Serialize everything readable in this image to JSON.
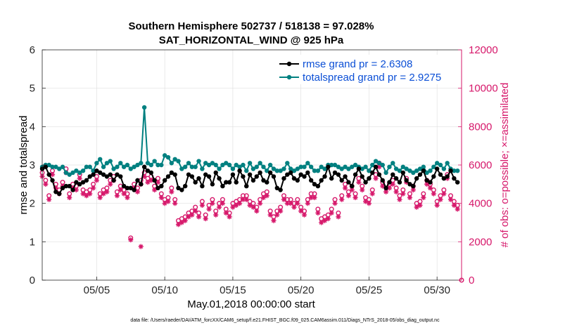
{
  "chart_data": {
    "type": "line",
    "title_line1": "Southern Hemisphere 502737 / 518138 = 97.028%",
    "title_line2": "SAT_HORIZONTAL_WIND @ 925 hPa",
    "xlabel": "May.01,2018 00:00:00 start",
    "ylabel_left": "rmse and totalspread",
    "ylabel_right": "# of obs: o=possible; ×=assimilated",
    "xlim": [
      1,
      31.8
    ],
    "ylim_left": [
      0,
      6
    ],
    "ylim_right": [
      0,
      12000
    ],
    "x_tick_values": [
      5,
      10,
      15,
      20,
      25,
      30
    ],
    "x_tick_labels": [
      "05/05",
      "05/10",
      "05/15",
      "05/20",
      "05/25",
      "05/30"
    ],
    "y_left_ticks": [
      "0",
      "1",
      "2",
      "3",
      "4",
      "5",
      "6"
    ],
    "y_right_ticks": [
      "0",
      "2000",
      "4000",
      "6000",
      "8000",
      "10000",
      "12000"
    ],
    "grid": true,
    "legend_position": "top-right",
    "legend": [
      "rmse grand pr = 2.6308",
      "totalspread grand pr = 2.9275"
    ],
    "colors": {
      "rmse": "#000000",
      "totalspread": "#008080",
      "obs": "#d6176a",
      "legend_text": "#0b4fd6"
    },
    "series": [
      {
        "name": "rmse",
        "axis": "left",
        "x": [
          1,
          1.25,
          1.5,
          1.75,
          2,
          2.25,
          2.5,
          2.75,
          3,
          3.25,
          3.5,
          3.75,
          4,
          4.25,
          4.5,
          4.75,
          5,
          5.25,
          5.5,
          5.75,
          6,
          6.25,
          6.5,
          6.75,
          7,
          7.25,
          7.5,
          7.75,
          8,
          8.25,
          8.5,
          8.75,
          9,
          9.25,
          9.5,
          9.75,
          10,
          10.25,
          10.5,
          10.75,
          11,
          11.25,
          11.5,
          11.75,
          12,
          12.25,
          12.5,
          12.75,
          13,
          13.25,
          13.5,
          13.75,
          14,
          14.25,
          14.5,
          14.75,
          15,
          15.25,
          15.5,
          15.75,
          16,
          16.25,
          16.5,
          16.75,
          17,
          17.25,
          17.5,
          17.75,
          18,
          18.25,
          18.5,
          18.75,
          19,
          19.25,
          19.5,
          19.75,
          20,
          20.25,
          20.5,
          20.75,
          21,
          21.25,
          21.5,
          21.75,
          22,
          22.25,
          22.5,
          22.75,
          23,
          23.25,
          23.5,
          23.75,
          24,
          24.25,
          24.5,
          24.75,
          25,
          25.25,
          25.5,
          25.75,
          26,
          26.25,
          26.5,
          26.75,
          27,
          27.25,
          27.5,
          27.75,
          28,
          28.25,
          28.5,
          28.75,
          29,
          29.25,
          29.5,
          29.75,
          30,
          30.25,
          30.5,
          30.75,
          31,
          31.25,
          31.5
        ],
        "values": [
          2.9,
          2.95,
          2.75,
          2.6,
          2.3,
          2.25,
          2.4,
          2.45,
          2.45,
          2.35,
          2.55,
          2.5,
          2.55,
          2.6,
          2.7,
          2.75,
          2.85,
          2.8,
          2.75,
          2.7,
          2.75,
          2.6,
          2.75,
          2.7,
          2.45,
          2.4,
          2.4,
          2.35,
          2.6,
          2.5,
          2.95,
          2.85,
          2.8,
          2.6,
          2.4,
          2.45,
          2.6,
          2.7,
          2.8,
          2.75,
          2.4,
          2.35,
          2.45,
          2.75,
          2.7,
          2.55,
          2.65,
          2.45,
          2.75,
          2.7,
          2.5,
          2.8,
          2.65,
          2.45,
          2.55,
          2.55,
          2.75,
          2.55,
          2.85,
          2.7,
          2.45,
          2.75,
          2.6,
          2.7,
          2.8,
          2.6,
          2.55,
          2.8,
          2.7,
          2.4,
          2.35,
          2.65,
          2.75,
          2.8,
          2.65,
          2.6,
          2.75,
          2.7,
          2.8,
          2.6,
          2.5,
          2.45,
          2.6,
          2.7,
          2.95,
          2.65,
          2.8,
          2.75,
          2.6,
          2.7,
          2.55,
          2.45,
          2.75,
          2.9,
          2.7,
          2.55,
          2.65,
          2.8,
          2.95,
          2.75,
          2.6,
          2.4,
          2.55,
          2.75,
          2.65,
          2.55,
          2.8,
          2.6,
          2.5,
          2.45,
          2.65,
          2.75,
          2.85,
          2.6,
          2.55,
          2.7,
          2.9,
          2.75,
          2.65,
          2.7,
          2.85,
          2.65,
          2.55
        ]
      },
      {
        "name": "totalspread",
        "axis": "left",
        "x": [
          1,
          1.25,
          1.5,
          1.75,
          2,
          2.25,
          2.5,
          2.75,
          3,
          3.25,
          3.5,
          3.75,
          4,
          4.25,
          4.5,
          4.75,
          5,
          5.25,
          5.5,
          5.75,
          6,
          6.25,
          6.5,
          6.75,
          7,
          7.25,
          7.5,
          7.75,
          8,
          8.25,
          8.5,
          8.75,
          9,
          9.25,
          9.5,
          9.75,
          10,
          10.25,
          10.5,
          10.75,
          11,
          11.25,
          11.5,
          11.75,
          12,
          12.25,
          12.5,
          12.75,
          13,
          13.25,
          13.5,
          13.75,
          14,
          14.25,
          14.5,
          14.75,
          15,
          15.25,
          15.5,
          15.75,
          16,
          16.25,
          16.5,
          16.75,
          17,
          17.25,
          17.5,
          17.75,
          18,
          18.25,
          18.5,
          18.75,
          19,
          19.25,
          19.5,
          19.75,
          20,
          20.25,
          20.5,
          20.75,
          21,
          21.25,
          21.5,
          21.75,
          22,
          22.25,
          22.5,
          22.75,
          23,
          23.25,
          23.5,
          23.75,
          24,
          24.25,
          24.5,
          24.75,
          25,
          25.25,
          25.5,
          25.75,
          26,
          26.25,
          26.5,
          26.75,
          27,
          27.25,
          27.5,
          27.75,
          28,
          28.25,
          28.5,
          28.75,
          29,
          29.25,
          29.5,
          29.75,
          30,
          30.25,
          30.5,
          30.75,
          31,
          31.25,
          31.5
        ],
        "values": [
          2.95,
          3.0,
          3.0,
          2.95,
          2.95,
          2.9,
          2.95,
          2.8,
          2.75,
          2.8,
          2.85,
          2.8,
          2.85,
          2.95,
          2.95,
          2.85,
          3.05,
          3.15,
          2.95,
          3.05,
          3.1,
          2.9,
          2.95,
          3.05,
          2.95,
          3.0,
          2.9,
          2.95,
          3.0,
          3.05,
          4.5,
          3.05,
          3.0,
          3.1,
          3.0,
          3.0,
          3.25,
          3.2,
          3.05,
          3.15,
          3.1,
          2.9,
          2.95,
          3.05,
          2.95,
          2.95,
          3.1,
          2.9,
          3.05,
          3.0,
          3.05,
          3.0,
          2.9,
          3.0,
          3.05,
          3.0,
          2.9,
          3.0,
          2.95,
          3.0,
          2.85,
          3.05,
          2.9,
          2.95,
          3.05,
          2.95,
          2.85,
          3.0,
          2.9,
          2.85,
          2.85,
          2.9,
          3.05,
          2.9,
          2.85,
          2.9,
          2.95,
          2.95,
          3.05,
          2.95,
          2.85,
          2.85,
          2.95,
          2.9,
          3.0,
          3.0,
          3.0,
          2.95,
          2.9,
          2.95,
          2.9,
          2.95,
          3.0,
          2.95,
          2.9,
          2.95,
          2.85,
          3.0,
          3.1,
          3.05,
          3.0,
          2.8,
          2.95,
          3.05,
          2.9,
          2.85,
          2.95,
          2.9,
          2.85,
          2.8,
          2.85,
          2.9,
          2.95,
          2.8,
          2.85,
          2.95,
          3.05,
          3.0,
          2.9,
          3.05,
          2.9,
          2.85,
          2.85
        ]
      },
      {
        "name": "obs_possible",
        "axis": "right",
        "marker": "circle",
        "x": [
          1,
          1.25,
          1.5,
          1.75,
          2,
          2.25,
          2.5,
          2.75,
          3,
          3.25,
          3.5,
          3.75,
          4,
          4.25,
          4.5,
          4.75,
          5,
          5.25,
          5.5,
          5.75,
          6,
          6.25,
          6.5,
          6.75,
          7,
          7.25,
          7.5,
          7.75,
          8,
          8.25,
          8.5,
          8.75,
          9,
          9.25,
          9.5,
          9.75,
          10,
          10.25,
          10.5,
          10.75,
          11,
          11.25,
          11.5,
          11.75,
          12,
          12.25,
          12.5,
          12.75,
          13,
          13.25,
          13.5,
          13.75,
          14,
          14.25,
          14.5,
          14.75,
          15,
          15.25,
          15.5,
          15.75,
          16,
          16.25,
          16.5,
          16.75,
          17,
          17.25,
          17.5,
          17.75,
          18,
          18.25,
          18.5,
          18.75,
          19,
          19.25,
          19.5,
          19.75,
          20,
          20.25,
          20.5,
          20.75,
          21,
          21.25,
          21.5,
          21.75,
          22,
          22.25,
          22.5,
          22.75,
          23,
          23.25,
          23.5,
          23.75,
          24,
          24.25,
          24.5,
          24.75,
          25,
          25.25,
          25.5,
          25.75,
          26,
          26.25,
          26.5,
          26.75,
          27,
          27.25,
          27.5,
          27.75,
          28,
          28.25,
          28.5,
          28.75,
          29,
          29.25,
          29.5,
          29.75,
          30,
          30.25,
          30.5,
          30.75,
          31,
          31.25,
          31.5
        ],
        "values": [
          5600,
          5200,
          4400,
          5700,
          5000,
          4700,
          5100,
          5800,
          4500,
          5000,
          4900,
          5500,
          4700,
          4600,
          4700,
          5000,
          5400,
          4500,
          4700,
          4800,
          5200,
          5400,
          4600,
          4900,
          4700,
          4500,
          2200,
          5000,
          4800,
          5200,
          5600,
          5300,
          5400,
          4900,
          5300,
          4500,
          4200,
          4300,
          4800,
          4200,
          3100,
          3200,
          3300,
          3500,
          3600,
          3800,
          3500,
          4100,
          3400,
          3900,
          4200,
          3600,
          4000,
          4200,
          3700,
          3500,
          4000,
          4100,
          4200,
          4400,
          4400,
          4100,
          4000,
          3800,
          4200,
          4500,
          4600,
          3600,
          3300,
          3600,
          3800,
          4400,
          4200,
          4200,
          4000,
          4200,
          3800,
          3600,
          4200,
          4500,
          4500,
          3700,
          3200,
          3300,
          3400,
          3700,
          4200,
          3500,
          4400,
          5000,
          4600,
          4900,
          4500,
          5300,
          4900,
          4300,
          4200,
          4700,
          5500,
          6100,
          5100,
          4800,
          5000,
          5200,
          4800,
          4400,
          4700,
          5300,
          4500,
          4900,
          4000,
          4100,
          4500,
          5200,
          5000,
          4700,
          4100,
          4400,
          4700,
          5500,
          4400,
          4100,
          3900
        ]
      },
      {
        "name": "obs_assimilated",
        "axis": "right",
        "marker": "asterisk",
        "x": [
          1,
          1.25,
          1.5,
          1.75,
          2,
          2.25,
          2.5,
          2.75,
          3,
          3.25,
          3.5,
          3.75,
          4,
          4.25,
          4.5,
          4.75,
          5,
          5.25,
          5.5,
          5.75,
          6,
          6.25,
          6.5,
          6.75,
          7,
          7.25,
          7.5,
          7.75,
          8,
          8.25,
          8.5,
          8.75,
          9,
          9.25,
          9.5,
          9.75,
          10,
          10.25,
          10.5,
          10.75,
          11,
          11.25,
          11.5,
          11.75,
          12,
          12.25,
          12.5,
          12.75,
          13,
          13.25,
          13.5,
          13.75,
          14,
          14.25,
          14.5,
          14.75,
          15,
          15.25,
          15.5,
          15.75,
          16,
          16.25,
          16.5,
          16.75,
          17,
          17.25,
          17.5,
          17.75,
          18,
          18.25,
          18.5,
          18.75,
          19,
          19.25,
          19.5,
          19.75,
          20,
          20.25,
          20.5,
          20.75,
          21,
          21.25,
          21.5,
          21.75,
          22,
          22.25,
          22.5,
          22.75,
          23,
          23.25,
          23.5,
          23.75,
          24,
          24.25,
          24.5,
          24.75,
          25,
          25.25,
          25.5,
          25.75,
          26,
          26.25,
          26.5,
          26.75,
          27,
          27.25,
          27.5,
          27.75,
          28,
          28.25,
          28.5,
          28.75,
          29,
          29.25,
          29.5,
          29.75,
          30,
          30.25,
          30.5,
          30.75,
          31,
          31.25,
          31.5
        ],
        "values": [
          5400,
          5000,
          4200,
          5500,
          4800,
          4500,
          4900,
          5600,
          4300,
          4800,
          4700,
          5300,
          4500,
          4400,
          4500,
          4800,
          5200,
          4300,
          4500,
          4600,
          5000,
          5200,
          4400,
          4700,
          4500,
          4300,
          2100,
          4800,
          4600,
          5000,
          5400,
          5100,
          5200,
          4700,
          5100,
          4300,
          4000,
          4100,
          4600,
          4000,
          2900,
          3000,
          3100,
          3300,
          3400,
          3600,
          3300,
          3900,
          3200,
          3700,
          4000,
          3400,
          3800,
          4000,
          3500,
          3300,
          3800,
          3900,
          4000,
          4200,
          4200,
          3900,
          3800,
          3600,
          4000,
          4300,
          4400,
          3400,
          3100,
          3400,
          3600,
          4200,
          4000,
          4000,
          3800,
          4000,
          3600,
          3400,
          4000,
          4300,
          4300,
          3500,
          3000,
          3100,
          3200,
          3500,
          4000,
          3300,
          4200,
          4800,
          4400,
          4700,
          4300,
          5100,
          4700,
          4100,
          4000,
          4500,
          5300,
          5900,
          4900,
          4600,
          4800,
          5000,
          4600,
          4200,
          4500,
          5100,
          4300,
          4700,
          3800,
          3900,
          4300,
          5000,
          4800,
          4500,
          3900,
          4200,
          4500,
          5300,
          4200,
          3900,
          3700
        ]
      }
    ],
    "extra_point": {
      "x": 8.25,
      "value": 1750,
      "axis": "right",
      "marker": "asterisk"
    },
    "zero_point": {
      "x": 31.8,
      "value": 0,
      "axis": "right",
      "marker": "circle"
    }
  },
  "footnote": "data file: /Users/raeder/DAI/ATM_forcXX/CAM6_setup/f.e21.FHIST_BGC.f09_025.CAM6assim.011/Diags_NTrS_2018-05/obs_diag_output.nc"
}
